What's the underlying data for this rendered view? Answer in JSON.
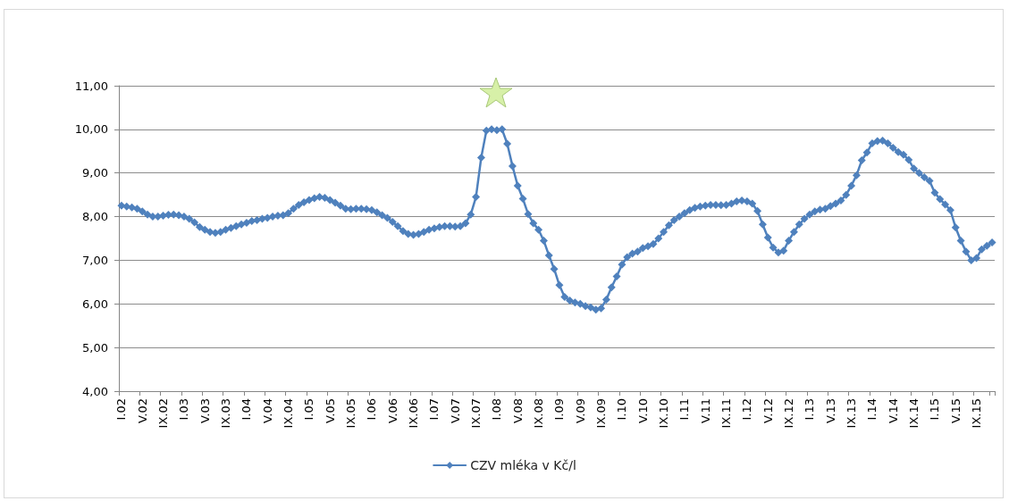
{
  "chart_data": {
    "type": "line",
    "categories": [
      "I.02",
      null,
      null,
      null,
      "V.02",
      null,
      null,
      null,
      "IX.02",
      null,
      null,
      null,
      "I.03",
      null,
      null,
      null,
      "V.03",
      null,
      null,
      null,
      "IX.03",
      null,
      null,
      null,
      "I.04",
      null,
      null,
      null,
      "V.04",
      null,
      null,
      null,
      "IX.04",
      null,
      null,
      null,
      "I.05",
      null,
      null,
      null,
      "V.05",
      null,
      null,
      null,
      "IX.05",
      null,
      null,
      null,
      "I.06",
      null,
      null,
      null,
      "V.06",
      null,
      null,
      null,
      "IX.06",
      null,
      null,
      null,
      "I.07",
      null,
      null,
      null,
      "V.07",
      null,
      null,
      null,
      "IX.07",
      null,
      null,
      null,
      "I.08",
      null,
      null,
      null,
      "V.08",
      null,
      null,
      null,
      "IX.08",
      null,
      null,
      null,
      "I.09",
      null,
      null,
      null,
      "V.09",
      null,
      null,
      null,
      "IX.09",
      null,
      null,
      null,
      "I.10",
      null,
      null,
      null,
      "V.10",
      null,
      null,
      null,
      "IX.10",
      null,
      null,
      null,
      "I.11",
      null,
      null,
      null,
      "V.11",
      null,
      null,
      null,
      "IX.11",
      null,
      null,
      null,
      "I.12",
      null,
      null,
      null,
      "V.12",
      null,
      null,
      null,
      "IX.12",
      null,
      null,
      null,
      "I.13",
      null,
      null,
      null,
      "V.13",
      null,
      null,
      null,
      "IX.13",
      null,
      null,
      null,
      "I.14",
      null,
      null,
      null,
      "V.14",
      null,
      null,
      null,
      "IX.14",
      null,
      null,
      null,
      "I.15",
      null,
      null,
      null,
      "V.15",
      null,
      null,
      null,
      "IX.15",
      null,
      null,
      null
    ],
    "series": [
      {
        "name": "CZV mléka v Kč/l",
        "color": "#4f81bd",
        "values": [
          8.25,
          8.23,
          8.21,
          8.18,
          8.12,
          8.05,
          8.0,
          8.0,
          8.02,
          8.04,
          8.05,
          8.03,
          8.0,
          7.95,
          7.87,
          7.76,
          7.7,
          7.65,
          7.63,
          7.65,
          7.7,
          7.74,
          7.78,
          7.82,
          7.86,
          7.9,
          7.92,
          7.95,
          7.97,
          8.0,
          8.02,
          8.03,
          8.08,
          8.18,
          8.27,
          8.33,
          8.38,
          8.42,
          8.45,
          8.43,
          8.38,
          8.32,
          8.25,
          8.18,
          8.17,
          8.18,
          8.18,
          8.17,
          8.15,
          8.1,
          8.03,
          7.97,
          7.88,
          7.78,
          7.67,
          7.6,
          7.58,
          7.6,
          7.65,
          7.7,
          7.73,
          7.76,
          7.78,
          7.78,
          7.77,
          7.78,
          7.85,
          8.05,
          8.45,
          9.35,
          9.97,
          10.0,
          9.98,
          10.0,
          9.67,
          9.16,
          8.71,
          8.41,
          8.06,
          7.85,
          7.7,
          7.45,
          7.11,
          6.8,
          6.43,
          6.16,
          6.08,
          6.03,
          6.0,
          5.95,
          5.92,
          5.87,
          5.9,
          6.1,
          6.38,
          6.63,
          6.9,
          7.07,
          7.15,
          7.2,
          7.28,
          7.32,
          7.37,
          7.5,
          7.65,
          7.8,
          7.92,
          8.0,
          8.08,
          8.15,
          8.2,
          8.23,
          8.25,
          8.27,
          8.27,
          8.26,
          8.27,
          8.3,
          8.35,
          8.37,
          8.35,
          8.3,
          8.13,
          7.82,
          7.52,
          7.29,
          7.18,
          7.22,
          7.45,
          7.65,
          7.82,
          7.95,
          8.05,
          8.12,
          8.16,
          8.18,
          8.24,
          8.3,
          8.37,
          8.5,
          8.71,
          8.95,
          9.29,
          9.47,
          9.68,
          9.73,
          9.74,
          9.68,
          9.58,
          9.48,
          9.42,
          9.3,
          9.1,
          9.0,
          8.9,
          8.82,
          8.55,
          8.4,
          8.28,
          8.15,
          7.75,
          7.45,
          7.2,
          7.0,
          7.05,
          7.25,
          7.33,
          7.41
        ]
      }
    ],
    "ylim": [
      4,
      11
    ],
    "yticks": [
      {
        "value": 4,
        "label": "4,00"
      },
      {
        "value": 5,
        "label": "5,00"
      },
      {
        "value": 6,
        "label": "6,00"
      },
      {
        "value": 7,
        "label": "7,00"
      },
      {
        "value": 8,
        "label": "8,00"
      },
      {
        "value": 9,
        "label": "9,00"
      },
      {
        "value": 10,
        "label": "10,00"
      },
      {
        "value": 11,
        "label": "11,00"
      }
    ],
    "grid": "y",
    "legend": "bottom",
    "marker": "diamond",
    "line_style": "solid"
  }
}
